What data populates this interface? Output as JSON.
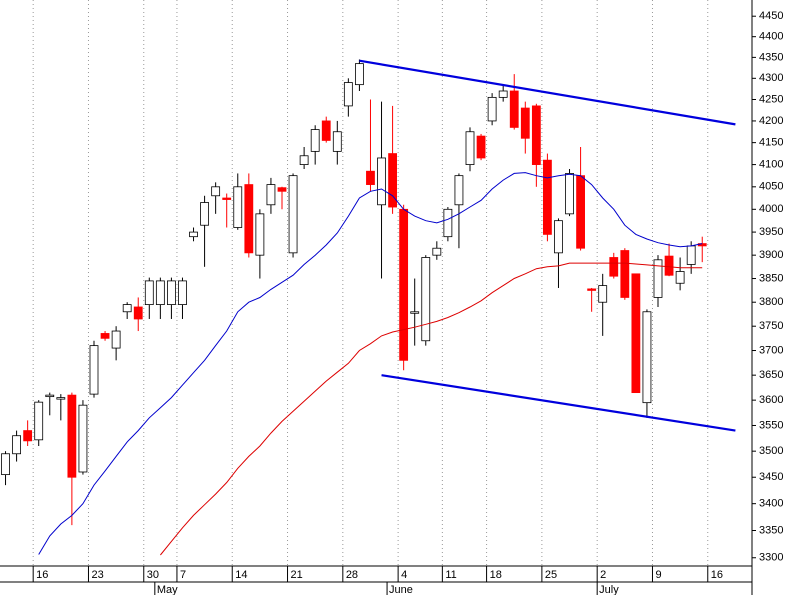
{
  "chart_data": {
    "type": "candlestick",
    "log_scale": true,
    "ylim": [
      3285,
      4490
    ],
    "yticks": [
      3300,
      3350,
      3400,
      3450,
      3500,
      3550,
      3600,
      3650,
      3700,
      3750,
      3800,
      3850,
      3900,
      3950,
      4000,
      4050,
      4100,
      4150,
      4200,
      4250,
      4300,
      4350,
      4400,
      4450
    ],
    "categories": [
      null,
      null,
      null,
      "16",
      null,
      null,
      null,
      null,
      "23",
      null,
      null,
      null,
      null,
      "30",
      null,
      null,
      "7",
      null,
      null,
      null,
      null,
      "14",
      null,
      null,
      null,
      null,
      "21",
      null,
      null,
      null,
      null,
      "28",
      null,
      null,
      null,
      null,
      "4",
      null,
      null,
      null,
      "11",
      null,
      null,
      null,
      "18",
      null,
      null,
      null,
      null,
      "25",
      null,
      null,
      null,
      null,
      "2",
      null,
      null,
      null,
      null,
      "9",
      null,
      null,
      null,
      null,
      "16",
      null,
      null,
      null
    ],
    "month_labels": [
      null,
      null,
      null,
      null,
      null,
      null,
      null,
      null,
      null,
      null,
      null,
      null,
      null,
      null,
      "May",
      null,
      null,
      null,
      null,
      null,
      null,
      null,
      null,
      null,
      null,
      null,
      null,
      null,
      null,
      null,
      null,
      null,
      null,
      null,
      null,
      "June",
      null,
      null,
      null,
      null,
      null,
      null,
      null,
      null,
      null,
      null,
      null,
      null,
      null,
      null,
      null,
      null,
      null,
      null,
      "July",
      null,
      null,
      null,
      null,
      null,
      null,
      null,
      null,
      null,
      null,
      null,
      null,
      null
    ],
    "up_color": "#ffffff",
    "down_color": "#ff0000",
    "open": [
      3455,
      3495,
      3540,
      3522,
      3608,
      3603,
      3610,
      3460,
      3612,
      3735,
      3705,
      3780,
      3790,
      3795,
      3795,
      3795,
      3795,
      3940,
      3965,
      4030,
      4025,
      3960,
      4055,
      3900,
      4010,
      4048,
      3905,
      4100,
      4130,
      4200,
      4130,
      4235,
      4285,
      4085,
      4010,
      4125,
      4000,
      3780,
      3720,
      3900,
      3940,
      4010,
      4100,
      4165,
      4200,
      4255,
      4270,
      4230,
      4235,
      4110,
      3905,
      3990,
      4075,
      3828,
      3800,
      3895,
      3910,
      3860,
      3595,
      3810,
      3898,
      3840,
      3880,
      3925,
      null,
      null,
      null,
      null
    ],
    "high": [
      3500,
      3540,
      3560,
      3600,
      3615,
      3612,
      3615,
      3600,
      3720,
      3740,
      3750,
      3800,
      3810,
      3852,
      3852,
      3852,
      3852,
      3960,
      4030,
      4060,
      4035,
      4080,
      4080,
      4000,
      4070,
      4050,
      4080,
      4140,
      4190,
      4210,
      4200,
      4300,
      4345,
      4250,
      4245,
      4235,
      4010,
      3850,
      3900,
      3930,
      4005,
      4080,
      4185,
      4170,
      4265,
      4285,
      4310,
      4245,
      4240,
      4125,
      3980,
      4090,
      4140,
      3830,
      3860,
      3905,
      3915,
      3860,
      3785,
      3900,
      3925,
      3895,
      3930,
      3940,
      null,
      null,
      null,
      null
    ],
    "low": [
      3435,
      3480,
      3510,
      3510,
      3570,
      3560,
      3360,
      3455,
      3605,
      3720,
      3680,
      3765,
      3740,
      3765,
      3765,
      3765,
      3765,
      3930,
      3875,
      3990,
      3960,
      3955,
      3895,
      3850,
      3990,
      4000,
      3895,
      4090,
      4100,
      4150,
      4100,
      4210,
      4270,
      4040,
      3850,
      3990,
      3660,
      3710,
      3710,
      3890,
      3930,
      3915,
      4085,
      4110,
      4190,
      4245,
      4180,
      4125,
      4050,
      3930,
      3830,
      3985,
      3910,
      3780,
      3730,
      3850,
      3805,
      3615,
      3565,
      3790,
      3855,
      3825,
      3860,
      3885,
      null,
      null,
      null,
      null
    ],
    "close": [
      3495,
      3530,
      3520,
      3596,
      3610,
      3605,
      3450,
      3590,
      3710,
      3725,
      3740,
      3795,
      3765,
      3845,
      3845,
      3845,
      3845,
      3950,
      4015,
      4050,
      4022,
      4050,
      3905,
      3990,
      4055,
      4040,
      4075,
      4120,
      4180,
      4155,
      4175,
      4290,
      4335,
      4055,
      4115,
      4005,
      3680,
      3780,
      3895,
      3915,
      4000,
      4075,
      4175,
      4115,
      4255,
      4270,
      4185,
      4160,
      4100,
      3945,
      3975,
      4080,
      3915,
      3825,
      3835,
      3855,
      3810,
      3615,
      3780,
      3890,
      3857,
      3865,
      3920,
      3920,
      null,
      null,
      null,
      null
    ],
    "series": [
      {
        "color": "#0000cc",
        "values": [
          null,
          null,
          null,
          3306,
          3340,
          3362,
          3378,
          3400,
          3435,
          3462,
          3490,
          3518,
          3540,
          3565,
          3585,
          3605,
          3630,
          3655,
          3680,
          3710,
          3740,
          3780,
          3800,
          3810,
          3827,
          3842,
          3857,
          3880,
          3900,
          3922,
          3948,
          3985,
          4025,
          4040,
          4045,
          4030,
          4000,
          3985,
          3975,
          3970,
          3978,
          3990,
          4005,
          4020,
          4045,
          4065,
          4080,
          4082,
          4075,
          4070,
          4075,
          4078,
          4075,
          4055,
          4025,
          4000,
          3965,
          3945,
          3935,
          3927,
          3922,
          3918,
          3920,
          3925,
          null,
          null,
          null,
          null
        ]
      },
      {
        "color": "#dd0000",
        "values": [
          null,
          null,
          null,
          null,
          null,
          null,
          null,
          null,
          null,
          null,
          null,
          null,
          null,
          null,
          3305,
          3330,
          3355,
          3378,
          3398,
          3418,
          3440,
          3467,
          3490,
          3510,
          3535,
          3558,
          3578,
          3598,
          3618,
          3638,
          3656,
          3674,
          3700,
          3714,
          3730,
          3738,
          3743,
          3748,
          3754,
          3760,
          3768,
          3778,
          3790,
          3803,
          3820,
          3835,
          3850,
          3860,
          3871,
          3875,
          3877,
          3883,
          3883,
          3883,
          3883,
          3883,
          3883,
          3881,
          3879,
          3877,
          3875,
          3873,
          3873,
          3873,
          null,
          null,
          null,
          null
        ]
      }
    ],
    "trendlines": [
      {
        "color": "#0000dd",
        "x": [
          32,
          66
        ],
        "values": [
          4342,
          4192
        ]
      },
      {
        "color": "#0000dd",
        "x": [
          34,
          66
        ],
        "values": [
          3650,
          3540
        ]
      }
    ]
  }
}
